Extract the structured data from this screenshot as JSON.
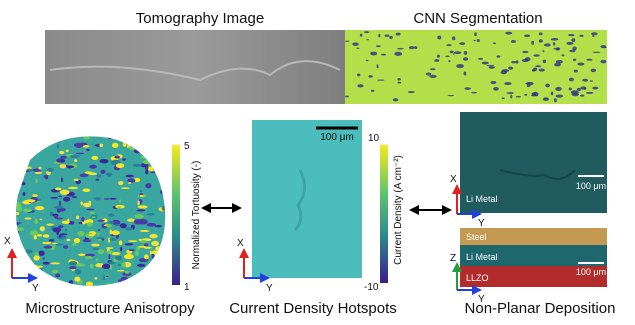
{
  "header": {
    "left_title": "Tomography Image",
    "right_title": "CNN Segmentation"
  },
  "panels": {
    "anisotropy": {
      "caption": "Microstructure Anisotropy",
      "colorbar_label": "Normalized Tortuosity (-)",
      "colorbar_max": "5",
      "colorbar_min": "1",
      "axis_x": "X",
      "axis_y": "Y"
    },
    "hotspots": {
      "caption": "Current Density Hotspots",
      "scale_bar": "100 μm",
      "colorbar_label": "Current Density (A cm⁻²)",
      "colorbar_max": "10",
      "colorbar_min": "-10",
      "axis_x": "X",
      "axis_y": "Y"
    },
    "deposition": {
      "caption": "Non-Planar Deposition",
      "top": {
        "layer": "Li Metal",
        "scale_bar": "100 μm",
        "axis_x": "X",
        "axis_y": "Y"
      },
      "bottom": {
        "layers": [
          "Steel",
          "Li Metal",
          "LLZO"
        ],
        "scale_bar": "100 μm",
        "axis_z": "Z",
        "axis_y": "Y"
      }
    }
  }
}
